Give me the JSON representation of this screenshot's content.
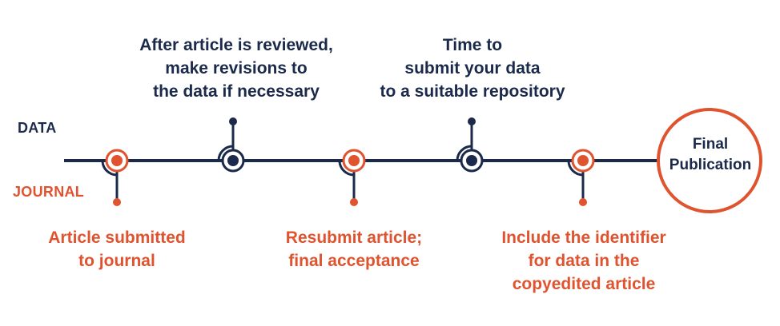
{
  "tracks": {
    "data_label": "DATA",
    "journal_label": "JOURNAL"
  },
  "colors": {
    "navy": "#1b2a4a",
    "orange": "#e0532f"
  },
  "milestones": [
    {
      "track": "journal",
      "text": "Article submitted\nto journal"
    },
    {
      "track": "data",
      "text": "After article is reviewed,\nmake revisions to\nthe data if necessary"
    },
    {
      "track": "journal",
      "text": "Resubmit article;\nfinal acceptance"
    },
    {
      "track": "data",
      "text": "Time to\nsubmit your data\nto a suitable repository"
    },
    {
      "track": "journal",
      "text": "Include the identifier\nfor data in the\ncopyedited article"
    }
  ],
  "final": {
    "text": "Final\nPublication"
  }
}
